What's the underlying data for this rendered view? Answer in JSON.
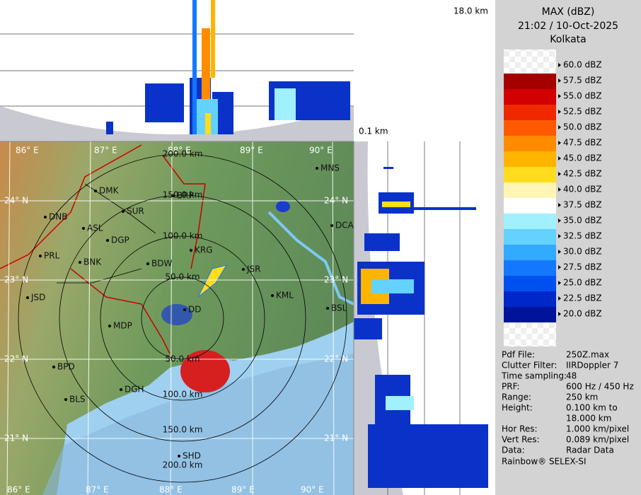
{
  "header": {
    "title": "MAX (dBZ)",
    "time": "21:02 / 10-Oct-2025",
    "site": "Kolkata"
  },
  "profile": {
    "top_height": "18.0 km",
    "bottom_height": "0.1 km"
  },
  "legend": {
    "labels": [
      "60.0 dBZ",
      "57.5 dBZ",
      "55.0 dBZ",
      "52.5 dBZ",
      "50.0 dBZ",
      "47.5 dBZ",
      "45.0 dBZ",
      "42.5 dBZ",
      "40.0 dBZ",
      "37.5 dBZ",
      "35.0 dBZ",
      "32.5 dBZ",
      "30.0 dBZ",
      "27.5 dBZ",
      "25.0 dBZ",
      "22.5 dBZ",
      "20.0 dBZ"
    ],
    "band_colors": [
      "#a50000",
      "#d20000",
      "#f02800",
      "#ff5a00",
      "#ff8c00",
      "#ffb400",
      "#ffdc1e",
      "#fff5b4",
      "#ffffff",
      "#a0f0ff",
      "#64d2ff",
      "#32aaff",
      "#1478ff",
      "#0050f0",
      "#0028c8",
      "#00149b"
    ]
  },
  "info": {
    "rows": [
      [
        "Pdf File:",
        "250Z.max"
      ],
      [
        "Clutter Filter:",
        "IIRDoppler 7"
      ],
      [
        "Time sampling:",
        "48"
      ],
      [
        "PRF:",
        "600 Hz / 450 Hz"
      ],
      [
        "Range:",
        "250 km"
      ],
      [
        "Height:",
        "0.100 km to"
      ],
      [
        "",
        "18.000 km"
      ],
      [
        "Hor Res:",
        "1.000 km/pixel"
      ],
      [
        "Vert Res:",
        "0.089 km/pixel"
      ],
      [
        "Data:",
        "Radar Data"
      ]
    ],
    "footer": "Rainbow® SELEX-SI"
  },
  "map": {
    "longitudes": [
      "86° E",
      "87° E",
      "88° E",
      "89° E",
      "90° E"
    ],
    "latitudes": [
      "24° N",
      "23° N",
      "22° N",
      "21° N"
    ],
    "ranges_north": [
      "50.0 km",
      "100.0 km",
      "150.0 km",
      "200.0 km"
    ],
    "ranges_south": [
      "50.0 km",
      "100.0 km",
      "150.0 km",
      "200.0 km"
    ],
    "cities": [
      "MNS",
      "DMK",
      "BRP",
      "SUR",
      "DNB",
      "ASL",
      "DGP",
      "DCA",
      "KRG",
      "PRL",
      "BNK",
      "BDW",
      "JSR",
      "KML",
      "JSD",
      "DD",
      "BSL",
      "MDP",
      "BPD",
      "DGH",
      "BLS",
      "SHD"
    ]
  }
}
